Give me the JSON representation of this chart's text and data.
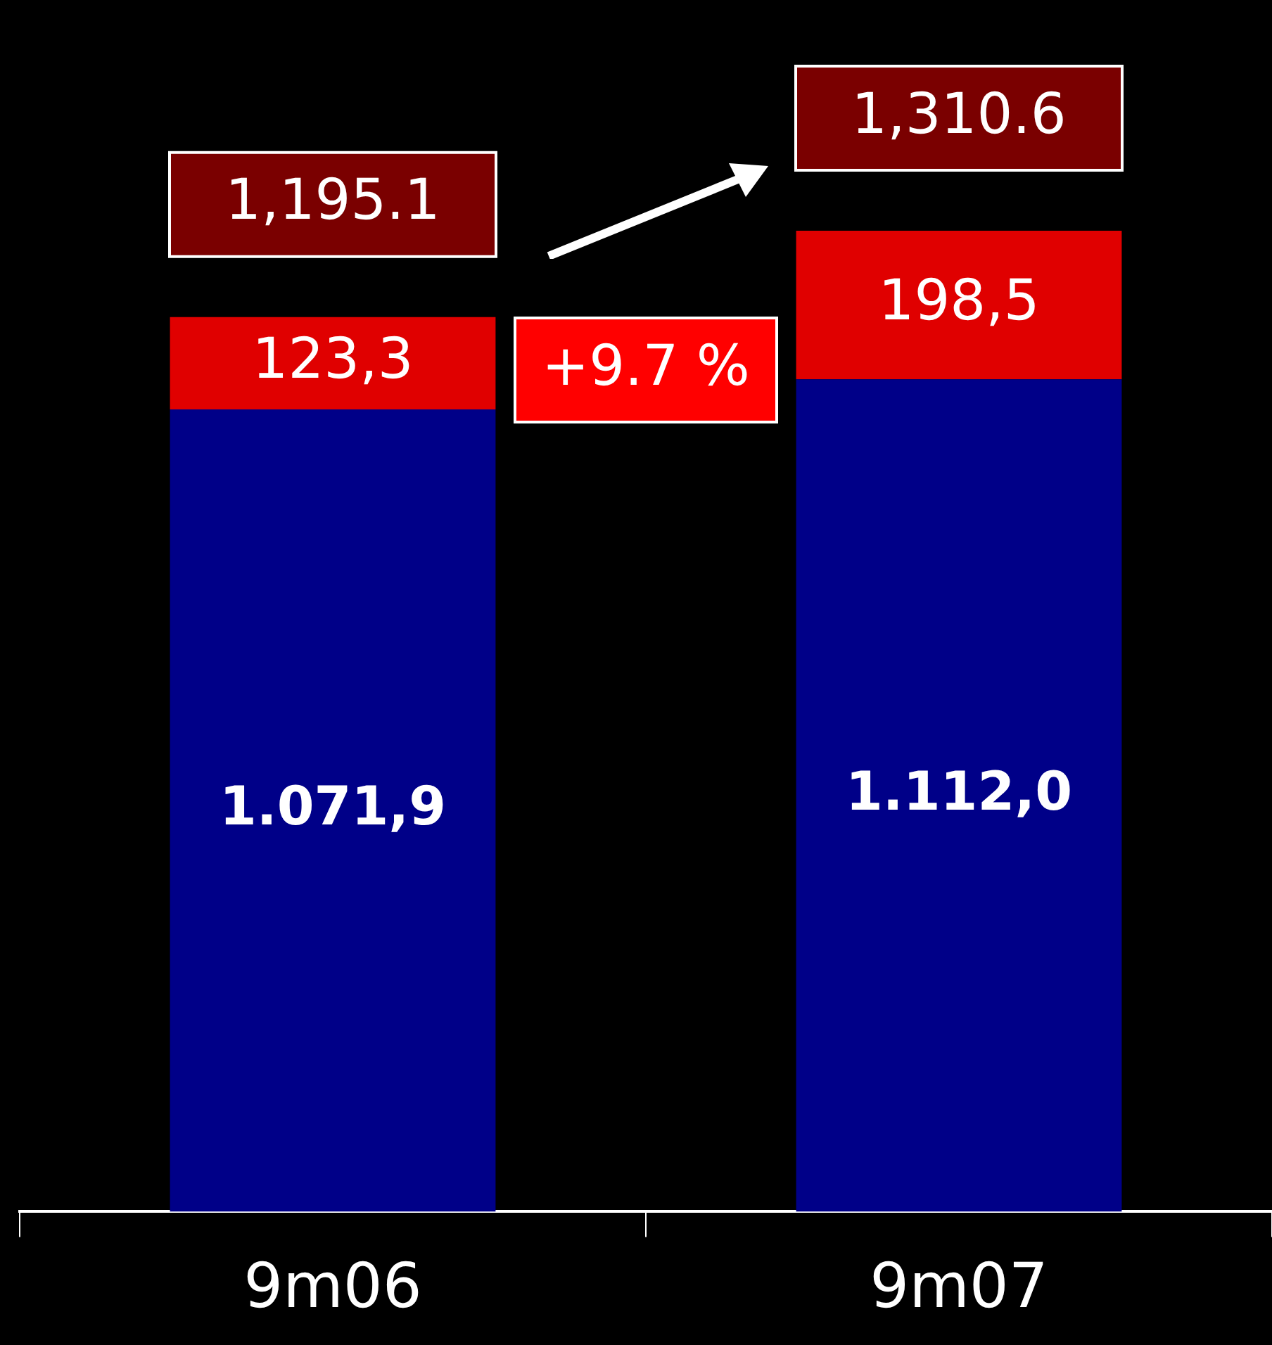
{
  "chart_data": {
    "type": "bar",
    "stacked": true,
    "categories": [
      "9m06",
      "9m07"
    ],
    "series": [
      {
        "color": "#000088",
        "values": [
          1071.9,
          1112.0
        ],
        "value_labels": [
          "1.071,9",
          "1.112,0"
        ]
      },
      {
        "color": "#e00000",
        "values": [
          123.3,
          198.5
        ],
        "value_labels": [
          "123,3",
          "198,5"
        ]
      }
    ],
    "totals": [
      "1,195.1",
      "1,310.6"
    ],
    "annotations": [
      "+9.7 %"
    ],
    "grid": false,
    "legend": false
  }
}
